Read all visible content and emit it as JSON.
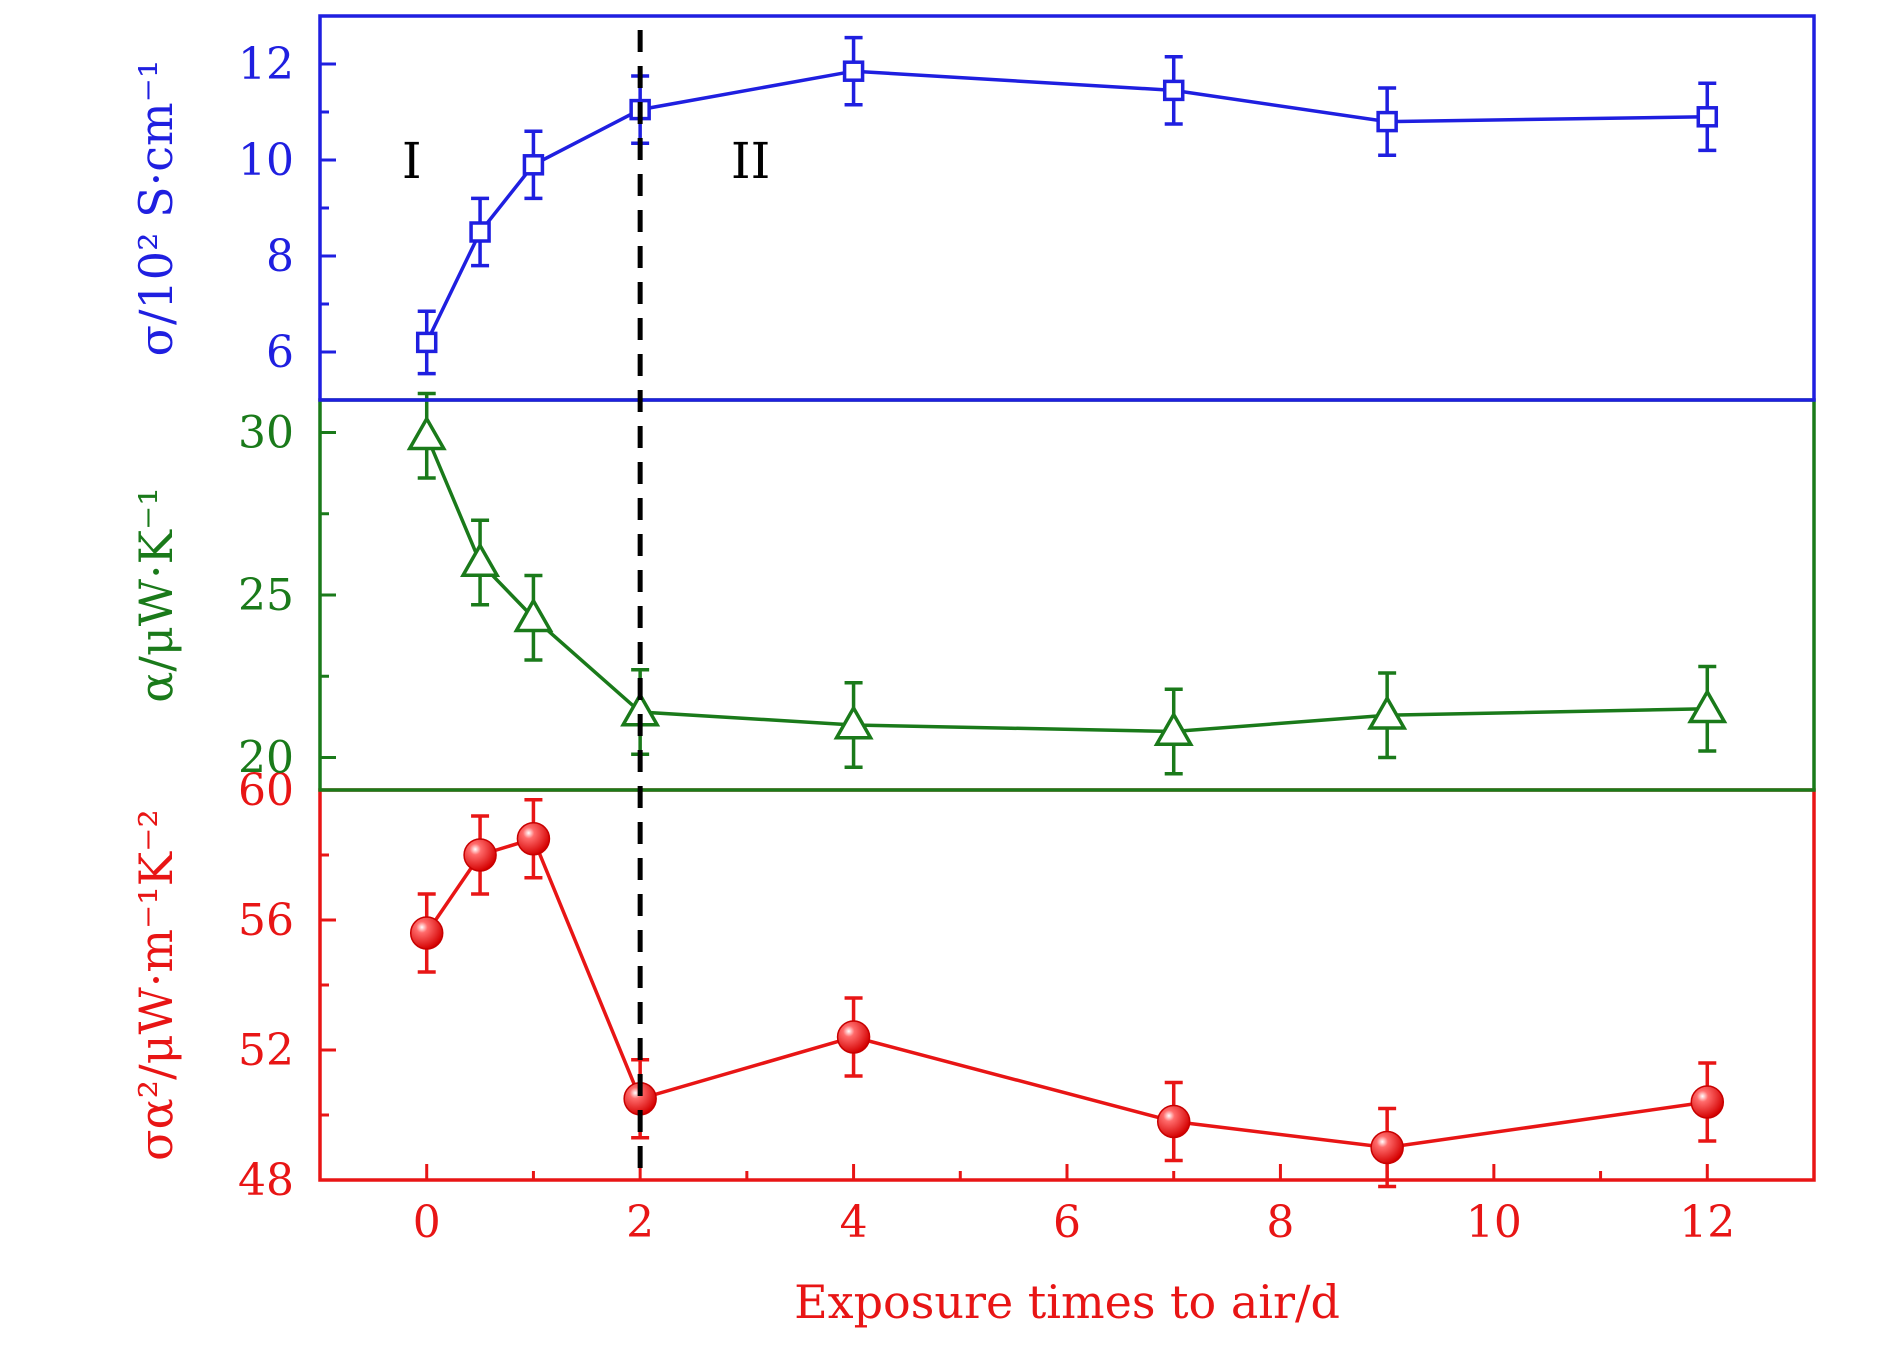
{
  "chart_data": {
    "type": "line",
    "xlabel": "Exposure times to air/d",
    "xlim": [
      -1,
      13
    ],
    "xticks": [
      0,
      2,
      4,
      6,
      8,
      10,
      12
    ],
    "x": [
      0,
      0.5,
      1,
      2,
      4,
      7,
      9,
      12
    ],
    "divider_x": 2,
    "regions": [
      {
        "label": "I",
        "x": 0
      },
      {
        "label": "II",
        "x": 2.85
      }
    ],
    "panels": [
      {
        "name": "conductivity",
        "ylabel": "σ/10² S·cm⁻¹",
        "color": "#1f1fe0",
        "marker": "square",
        "ylim": [
          5,
          13
        ],
        "yticks": [
          6,
          8,
          10,
          12
        ],
        "values": [
          6.2,
          8.5,
          9.9,
          11.05,
          11.85,
          11.45,
          10.8,
          10.9
        ],
        "errors": [
          0.65,
          0.7,
          0.7,
          0.7,
          0.7,
          0.7,
          0.7,
          0.7
        ]
      },
      {
        "name": "seebeck",
        "ylabel": "α/μW·K⁻¹",
        "color": "#1a7a1a",
        "marker": "triangle",
        "ylim": [
          19,
          31
        ],
        "yticks": [
          20,
          25,
          30
        ],
        "values": [
          29.9,
          26.0,
          24.3,
          21.4,
          21.0,
          20.8,
          21.3,
          21.5
        ],
        "errors": [
          1.3,
          1.3,
          1.3,
          1.3,
          1.3,
          1.3,
          1.3,
          1.3
        ]
      },
      {
        "name": "power-factor",
        "ylabel": "σα²/μW·m⁻¹K⁻²",
        "color": "#e81515",
        "marker": "circle",
        "ylim": [
          48,
          60
        ],
        "yticks": [
          48,
          52,
          56,
          60
        ],
        "values": [
          55.6,
          58.0,
          58.5,
          50.5,
          52.4,
          49.8,
          49.0,
          50.4
        ],
        "errors": [
          1.2,
          1.2,
          1.2,
          1.2,
          1.2,
          1.2,
          1.2,
          1.2
        ]
      }
    ]
  }
}
